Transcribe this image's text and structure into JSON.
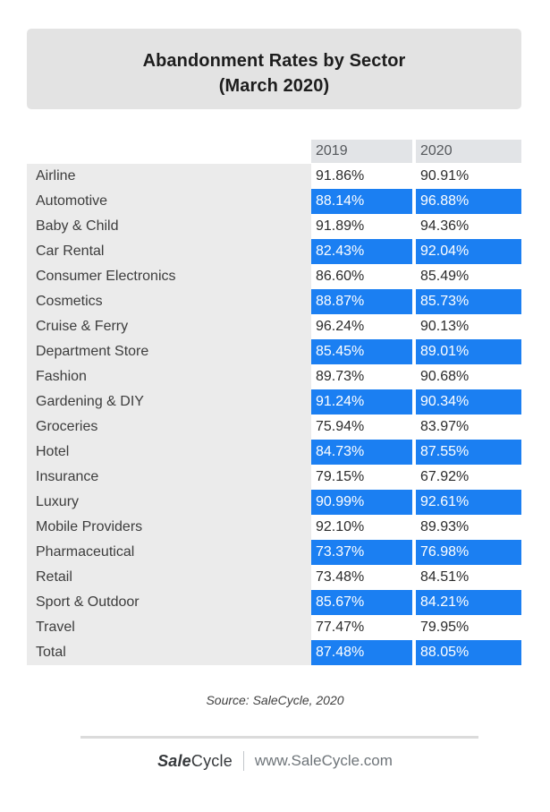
{
  "title": {
    "line1": "Abandonment Rates by Sector",
    "line2": "(March 2020)"
  },
  "chart_data": {
    "type": "table",
    "title": "Abandonment Rates by Sector (March 2020)",
    "categories": [
      "Airline",
      "Automotive",
      "Baby & Child",
      "Car Rental",
      "Consumer Electronics",
      "Cosmetics",
      "Cruise & Ferry",
      "Department Store",
      "Fashion",
      "Gardening & DIY",
      "Groceries",
      "Hotel",
      "Insurance",
      "Luxury",
      "Mobile Providers",
      "Pharmaceutical",
      "Retail",
      "Sport & Outdoor",
      "Travel",
      "Total"
    ],
    "series": [
      {
        "name": "2019",
        "values": [
          91.86,
          88.14,
          91.89,
          82.43,
          86.6,
          88.87,
          96.24,
          85.45,
          89.73,
          91.24,
          75.94,
          84.73,
          79.15,
          90.99,
          92.1,
          73.37,
          73.48,
          85.67,
          77.47,
          87.48
        ]
      },
      {
        "name": "2020",
        "values": [
          90.91,
          96.88,
          94.36,
          92.04,
          85.49,
          85.73,
          90.13,
          89.01,
          90.68,
          90.34,
          83.97,
          87.55,
          67.92,
          92.61,
          89.93,
          76.98,
          84.51,
          84.21,
          79.95,
          88.05
        ]
      }
    ],
    "value_format": "percent_2dp",
    "layout": {
      "highlight_pattern": "every_second_row",
      "highlight_color": "#1b7ff2"
    }
  },
  "source": "Source: SaleCycle, 2020",
  "footer": {
    "logo_bold": "Sale",
    "logo_regular": "Cycle",
    "website": "www.SaleCycle.com"
  },
  "colors": {
    "highlight_blue": "#1b7ff2",
    "name_column_gray": "#ebebeb",
    "header_gray": "#e2e4e7",
    "title_box_gray": "#e3e3e3",
    "divider_gray": "#dbdbdb"
  }
}
